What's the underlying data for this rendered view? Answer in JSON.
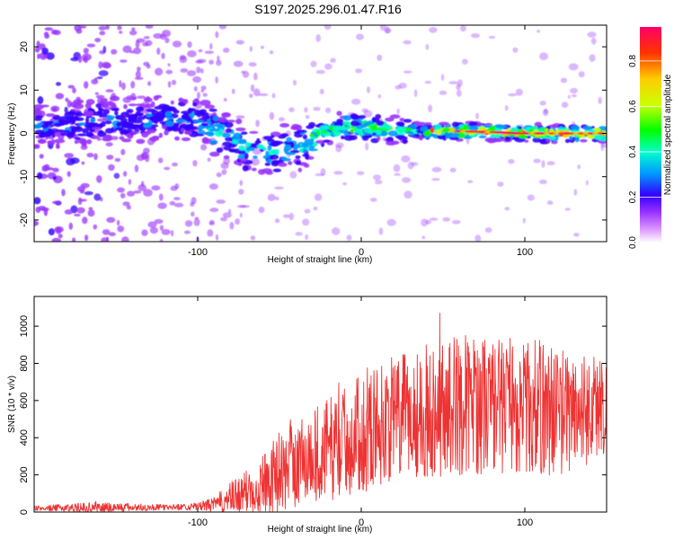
{
  "title": "S197.2025.296.01.47.R16",
  "chart_data": [
    {
      "type": "heatmap",
      "name": "spectrogram",
      "xlabel": "Height of straight line (km)",
      "ylabel": "Frequency (Hz)",
      "xlim": [
        -200,
        150
      ],
      "ylim": [
        -25,
        25
      ],
      "xticks": [
        -100,
        0,
        100
      ],
      "xtick_labels": [
        "-100",
        "0",
        "100"
      ],
      "yticks": [
        -20,
        -10,
        0,
        10,
        20
      ],
      "ytick_labels": [
        "-20",
        "-10",
        "0",
        "10",
        "20"
      ],
      "colorbar": {
        "label": "Normalized spectral amplitude",
        "range": [
          0,
          0.95
        ],
        "ticks": [
          0.0,
          0.2,
          0.4,
          0.6,
          0.8
        ],
        "tick_labels": [
          "0.0",
          "0.2",
          "0.4",
          "0.6",
          "0.8"
        ],
        "colormap": [
          "#ffffff",
          "#9933ff",
          "#3300ff",
          "#0099ff",
          "#00ffcc",
          "#00ff00",
          "#ccff00",
          "#ffcc00",
          "#ff3300",
          "#ff0066"
        ]
      },
      "ridge": {
        "x": [
          -200,
          -180,
          -160,
          -140,
          -120,
          -100,
          -90,
          -80,
          -70,
          -60,
          -50,
          -40,
          -30,
          -25,
          -20,
          -10,
          0,
          10,
          20,
          40,
          60,
          80,
          100,
          120,
          150
        ],
        "freq": [
          1,
          2,
          3,
          3,
          4,
          3,
          1,
          -1,
          -4,
          -4,
          -4,
          -3,
          -2,
          0,
          0.5,
          1.5,
          1.5,
          1,
          0.5,
          0.5,
          0.5,
          0.3,
          0,
          0,
          0
        ]
      }
    },
    {
      "type": "line",
      "name": "snr",
      "xlabel": "Height of straight line (km)",
      "ylabel": "SNR (10 * v/v)",
      "xlim": [
        -200,
        150
      ],
      "ylim": [
        0,
        1160
      ],
      "xticks": [
        -100,
        0,
        100
      ],
      "xtick_labels": [
        "-100",
        "0",
        "100"
      ],
      "yticks": [
        0,
        200,
        400,
        600,
        800,
        1000
      ],
      "ytick_labels": [
        "0",
        "200",
        "400",
        "600",
        "800",
        "1000"
      ],
      "line_color": "#ee3333",
      "envelope": {
        "x": [
          -200,
          -160,
          -120,
          -100,
          -90,
          -80,
          -70,
          -60,
          -50,
          -40,
          -30,
          -20,
          -10,
          0,
          10,
          20,
          30,
          40,
          50,
          60,
          70,
          80,
          90,
          100,
          110,
          120,
          130,
          140,
          150
        ],
        "mean": [
          20,
          25,
          25,
          30,
          40,
          70,
          110,
          160,
          200,
          260,
          300,
          340,
          380,
          420,
          470,
          500,
          520,
          540,
          560,
          580,
          580,
          580,
          570,
          560,
          560,
          550,
          540,
          560,
          580
        ],
        "amplitude": [
          12,
          30,
          15,
          20,
          40,
          90,
          120,
          170,
          220,
          240,
          260,
          280,
          300,
          320,
          330,
          340,
          350,
          360,
          370,
          380,
          380,
          370,
          360,
          360,
          380,
          350,
          320,
          300,
          280
        ]
      }
    }
  ]
}
